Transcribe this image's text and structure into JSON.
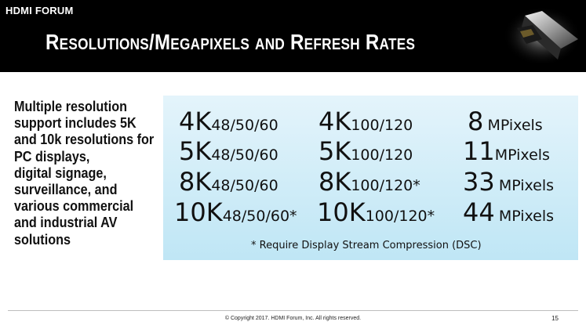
{
  "header": {
    "brand": "HDMI FORUM",
    "title": "Resolutions/Megapixels and Refresh Rates"
  },
  "left_text": [
    "Multiple resolution",
    "support includes 5K",
    "and 10k resolutions for",
    "PC displays,",
    "digital signage,",
    "surveillance, and",
    "various commercial",
    "and industrial AV",
    "solutions"
  ],
  "table": {
    "rows": [
      {
        "c1_res": "4K",
        "c1_rate": "48/50/60",
        "c2_res": "4K",
        "c2_rate": "100/120",
        "mp_value": "8",
        "mp_unit": "MPixels"
      },
      {
        "c1_res": "5K",
        "c1_rate": "48/50/60",
        "c2_res": "5K",
        "c2_rate": "100/120",
        "mp_value": "11",
        "mp_unit": "MPixels"
      },
      {
        "c1_res": "8K",
        "c1_rate": "48/50/60",
        "c2_res": "8K",
        "c2_rate": "100/120*",
        "mp_value": "33",
        "mp_unit": "MPixels"
      },
      {
        "c1_res": "10K",
        "c1_rate": "48/50/60*",
        "c2_res": "10K",
        "c2_rate": "100/120*",
        "mp_value": "44",
        "mp_unit": "MPixels"
      }
    ],
    "footnote": "*  Require Display Stream Compression (DSC)"
  },
  "footer": {
    "copyright": "© Copyright 2017. HDMI Forum, Inc.  All rights reserved.",
    "page_number": "15"
  },
  "colors": {
    "header_bg": "#000000",
    "panel_top": "#e4f4fb",
    "panel_bottom": "#bfe6f5"
  }
}
